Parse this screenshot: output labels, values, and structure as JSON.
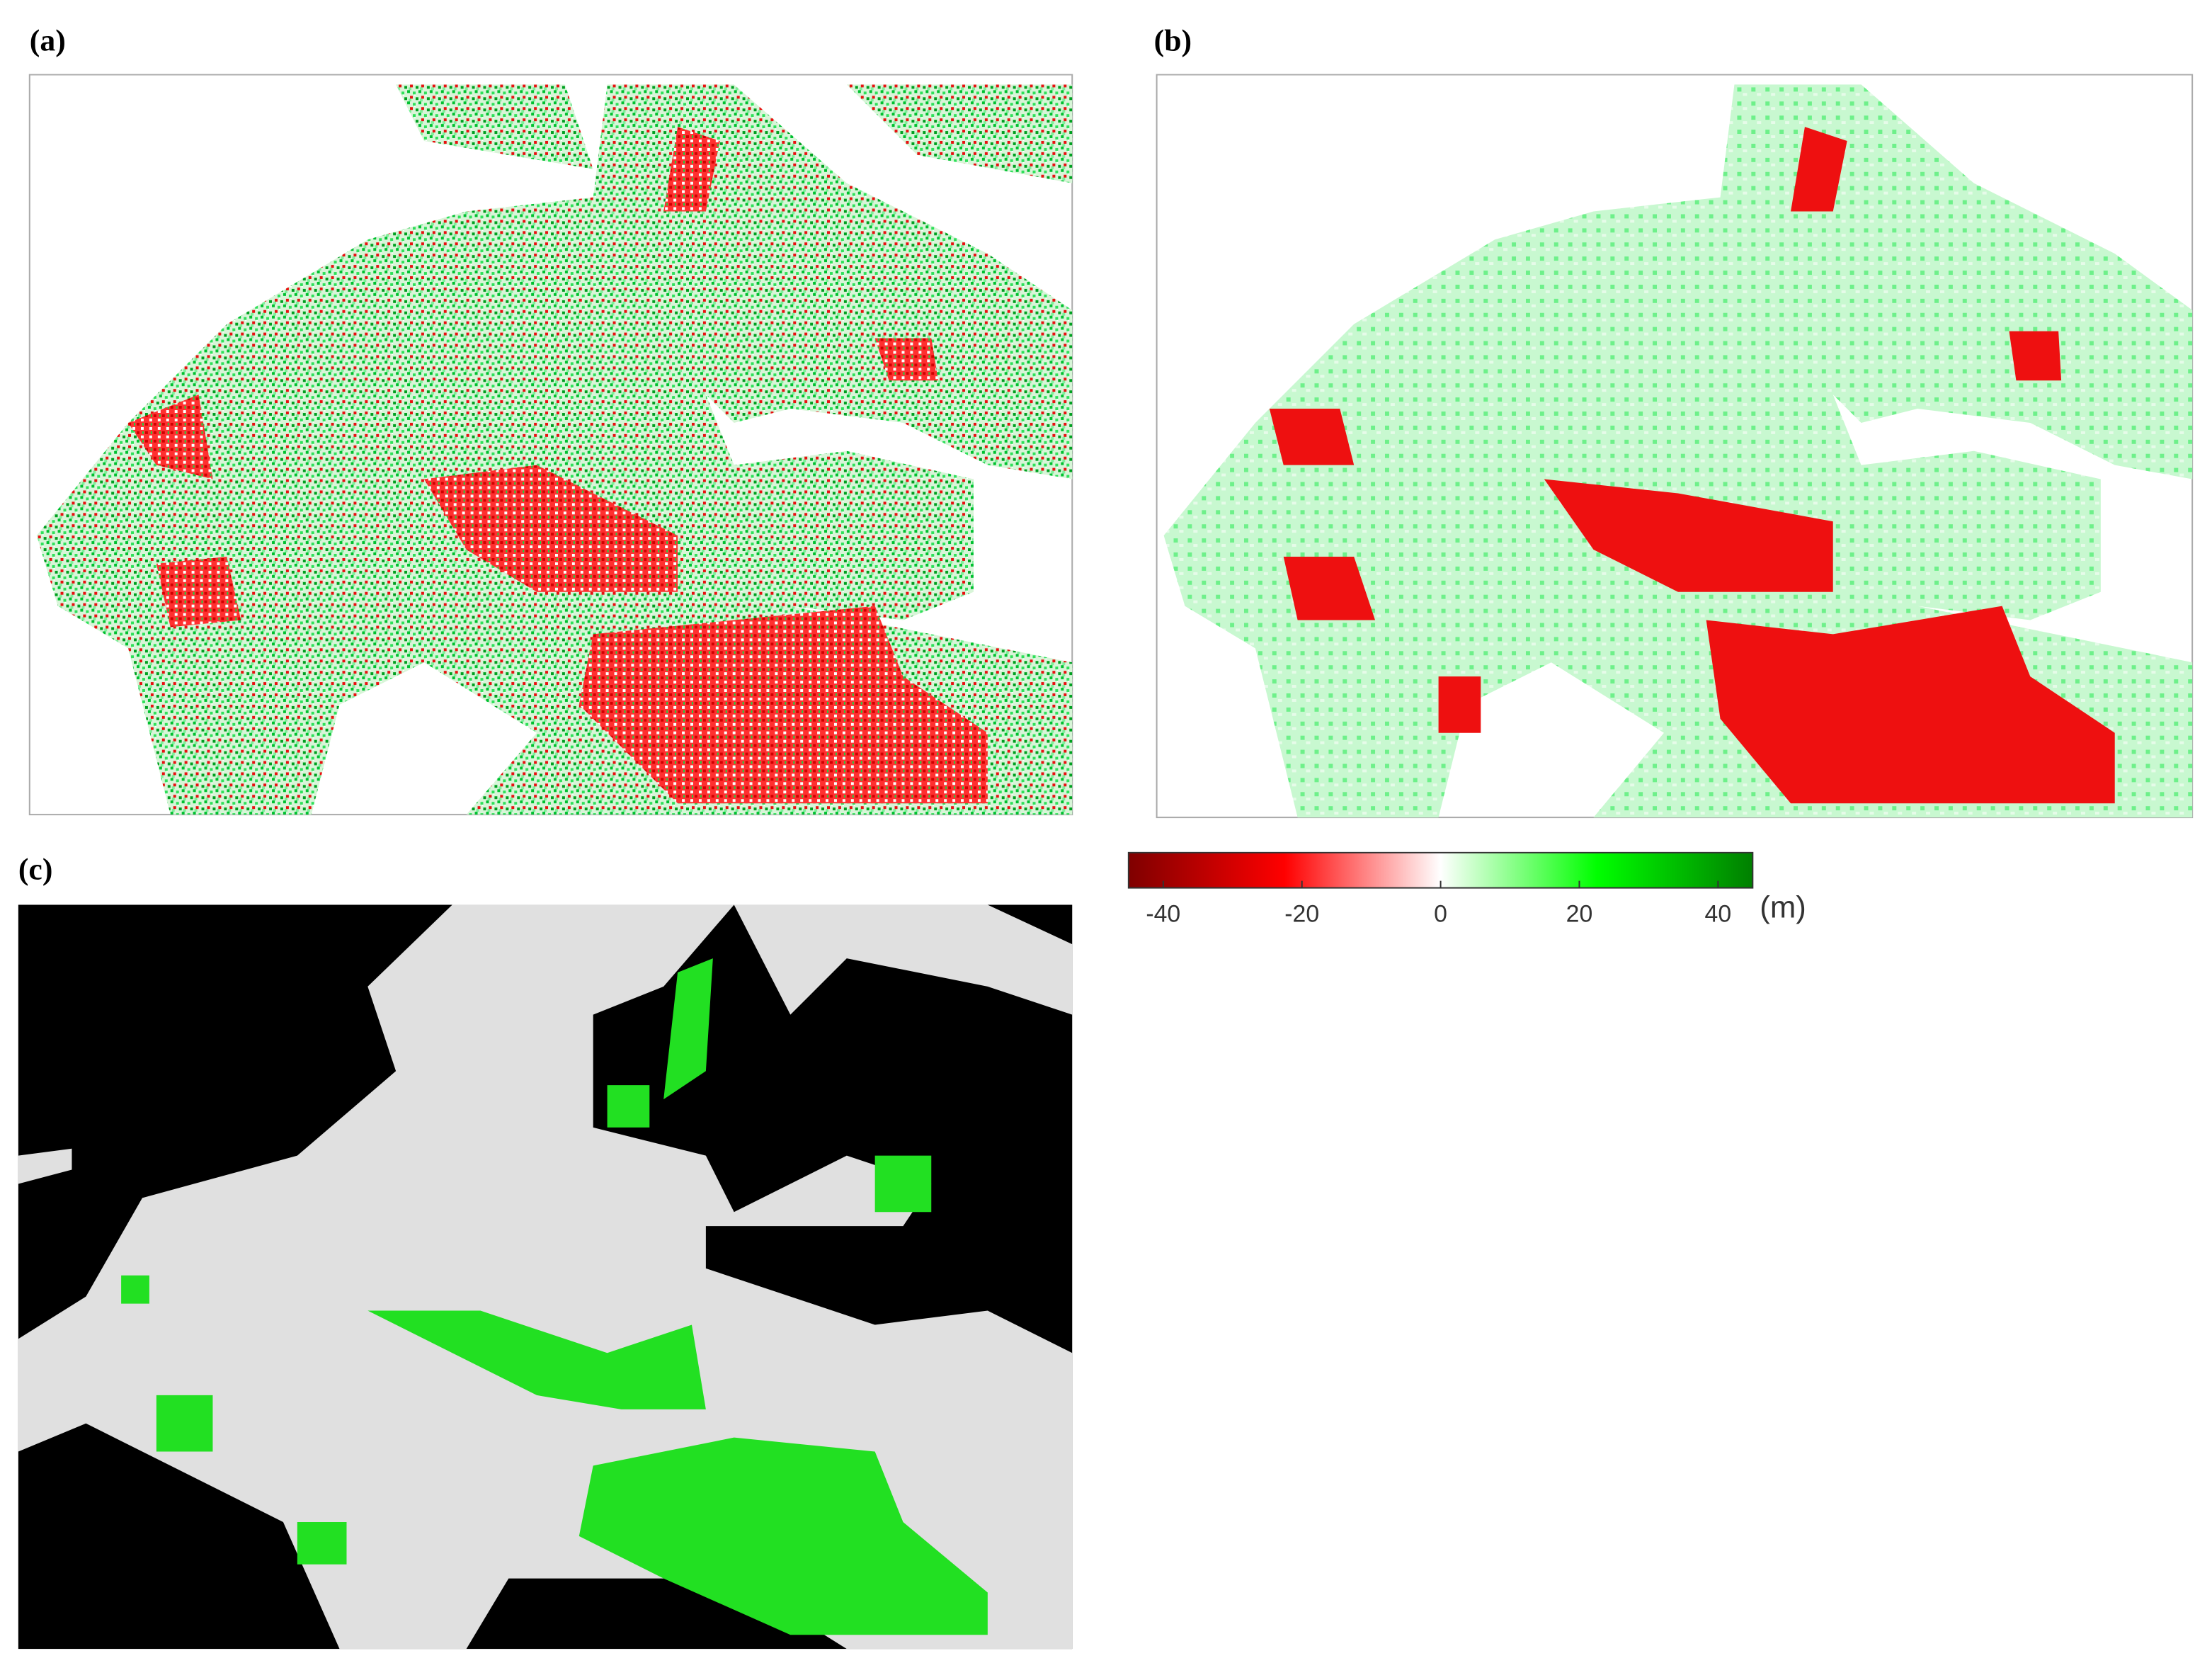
{
  "panels": [
    {
      "label": "(a)"
    },
    {
      "label": "(b)"
    },
    {
      "label": "(c)"
    }
  ],
  "colorbar": {
    "lim": [
      -45,
      45
    ],
    "ticks": [
      -40,
      -20,
      0,
      20,
      40
    ],
    "unit": "(m)",
    "colors": [
      "#7f0000",
      "#ff0000",
      "#ffffff",
      "#00ff00",
      "#007f00"
    ]
  }
}
